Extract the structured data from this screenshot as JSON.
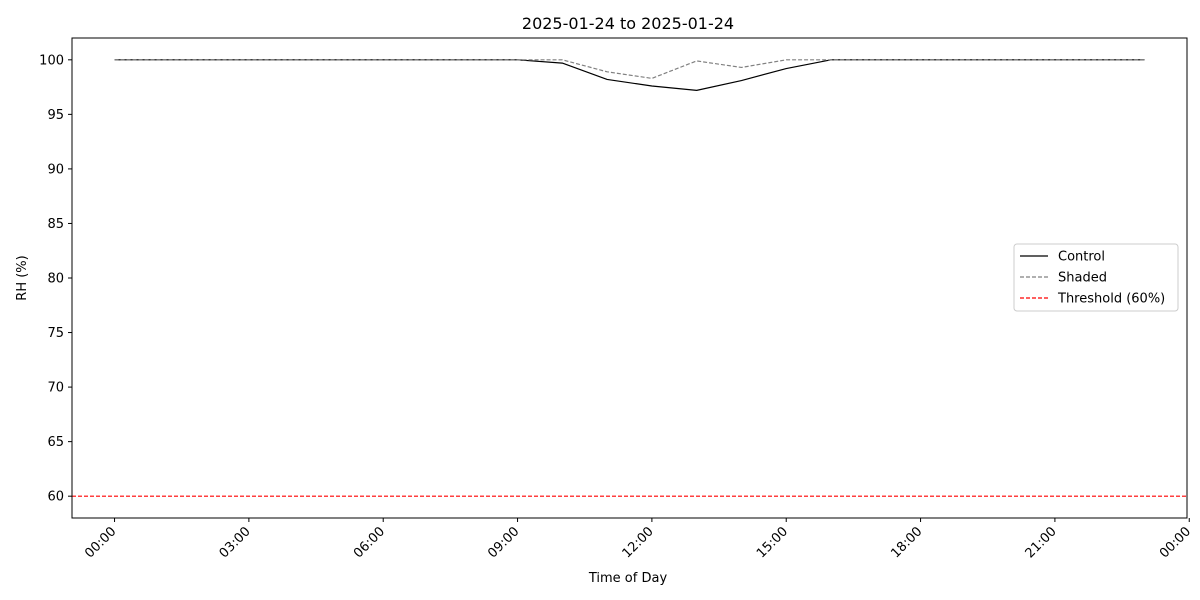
{
  "chart_data": {
    "type": "line",
    "title": "2025-01-24 to 2025-01-24",
    "xlabel": "Time of Day",
    "ylabel": "RH (%)",
    "x_unit": "hour of day",
    "xlim": [
      -0.95,
      23.95
    ],
    "ylim": [
      58,
      102
    ],
    "x_ticks": [
      0,
      3,
      6,
      9,
      12,
      15,
      18,
      21,
      24
    ],
    "x_tick_labels": [
      "00:00",
      "03:00",
      "06:00",
      "09:00",
      "12:00",
      "15:00",
      "18:00",
      "21:00",
      "00:00"
    ],
    "y_ticks": [
      60,
      65,
      70,
      75,
      80,
      85,
      90,
      95,
      100
    ],
    "y_tick_labels": [
      "60",
      "65",
      "70",
      "75",
      "80",
      "85",
      "90",
      "95",
      "100"
    ],
    "grid": false,
    "legend_position": "center-right",
    "x": [
      0,
      1,
      2,
      3,
      4,
      5,
      6,
      7,
      8,
      9,
      10,
      11,
      12,
      13,
      14,
      15,
      16,
      17,
      18,
      19,
      20,
      21,
      22,
      23
    ],
    "series": [
      {
        "name": "Control",
        "color": "#000000",
        "style": "solid",
        "values": [
          100,
          100,
          100,
          100,
          100,
          100,
          100,
          100,
          100,
          100,
          99.7,
          98.2,
          97.6,
          97.2,
          98.1,
          99.2,
          100,
          100,
          100,
          100,
          100,
          100,
          100,
          100
        ]
      },
      {
        "name": "Shaded",
        "color": "#808080",
        "style": "dashed",
        "values": [
          100,
          100,
          100,
          100,
          100,
          100,
          100,
          100,
          100,
          100,
          100,
          98.9,
          98.3,
          99.9,
          99.3,
          100,
          100,
          100,
          100,
          100,
          100,
          100,
          100,
          100
        ]
      }
    ],
    "threshold": {
      "name": "Threshold (60%)",
      "value": 60,
      "color": "#ff0000",
      "style": "dashed"
    }
  }
}
